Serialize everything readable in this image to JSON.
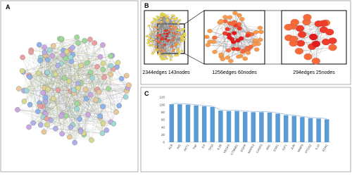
{
  "panels": {
    "a": {
      "label": "A"
    },
    "b": {
      "label": "B",
      "captions": [
        "2344edges 143nodes",
        "1256edges 60nodes",
        "294edges 25nodes"
      ]
    },
    "c": {
      "label": "C"
    }
  },
  "chart_data": {
    "type": "bar",
    "trend_line": true,
    "color": "#5b9bd5",
    "line_color": "#a9c4e0",
    "categories": [
      "ALB",
      "INS",
      "AKT1",
      "TNF",
      "IL6",
      "TP53",
      "IL1B",
      "VEGFA",
      "CTNNB1",
      "EGFR",
      "MAPK3",
      "CASP3",
      "SRC",
      "ESR1",
      "IGF1",
      "JUN",
      "MMP9",
      "PTGS2",
      "IL10",
      "EDN1"
    ],
    "values": [
      101,
      101,
      100,
      98,
      96,
      94,
      84,
      83,
      83,
      81,
      80,
      80,
      79,
      76,
      72,
      70,
      67,
      64,
      63,
      61
    ],
    "ylim": [
      0,
      120
    ],
    "yticks": [
      0,
      20,
      40,
      60,
      80,
      100,
      120
    ],
    "grid": false
  }
}
